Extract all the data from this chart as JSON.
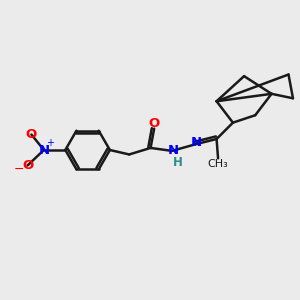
{
  "background_color": "#ebebeb",
  "bond_color": "#1a1a1a",
  "nitrogen_color": "#0000ff",
  "oxygen_color": "#ff0000",
  "hydrogen_color": "#2e8b8b",
  "line_width": 1.8,
  "figsize": [
    3.0,
    3.0
  ],
  "dpi": 100,
  "xlim": [
    0,
    10
  ],
  "ylim": [
    0,
    10
  ]
}
